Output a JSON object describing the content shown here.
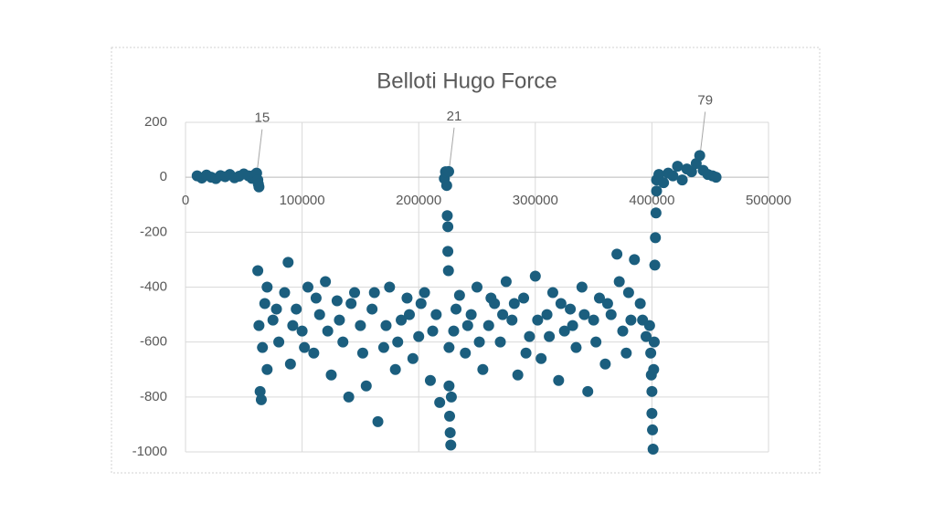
{
  "chart_data": {
    "type": "scatter",
    "title": "Belloti Hugo Force",
    "color": "#1b5e7e",
    "grid": true,
    "xlim": [
      0,
      500000
    ],
    "xticks": [
      0,
      100000,
      200000,
      300000,
      400000,
      500000
    ],
    "ylim": [
      -1000,
      200
    ],
    "yticks": [
      -1000,
      -800,
      -600,
      -400,
      -200,
      0,
      200
    ],
    "x": [
      10000,
      14000,
      18000,
      22000,
      26000,
      30000,
      34000,
      38000,
      42000,
      46000,
      50000,
      54000,
      57000,
      59000,
      61000,
      62000,
      62500,
      63000,
      62000,
      63000,
      64000,
      65000,
      66000,
      68000,
      70000,
      75000,
      80000,
      85000,
      88000,
      90000,
      95000,
      100000,
      105000,
      110000,
      115000,
      120000,
      125000,
      130000,
      135000,
      140000,
      145000,
      150000,
      155000,
      160000,
      165000,
      170000,
      175000,
      180000,
      185000,
      190000,
      195000,
      200000,
      205000,
      210000,
      215000,
      218000,
      222000,
      223000,
      224000,
      225700,
      224500,
      225000,
      225000,
      225500,
      226000,
      226000,
      226500,
      227000,
      227500,
      228000,
      230000,
      235000,
      240000,
      245000,
      250000,
      255000,
      260000,
      265000,
      270000,
      275000,
      280000,
      285000,
      290000,
      295000,
      300000,
      305000,
      310000,
      315000,
      320000,
      325000,
      330000,
      335000,
      340000,
      345000,
      350000,
      355000,
      360000,
      365000,
      370000,
      372000,
      375000,
      378000,
      380000,
      385000,
      390000,
      392000,
      395000,
      398000,
      399000,
      399500,
      400000,
      400000,
      400500,
      401000,
      401500,
      402000,
      402500,
      403000,
      403500,
      404000,
      404000,
      406000,
      410000,
      414000,
      418000,
      422000,
      426000,
      430000,
      434000,
      438000,
      441000,
      444000,
      448000,
      452000,
      455000,
      70000,
      78000,
      92000,
      102000,
      112000,
      122000,
      132000,
      142000,
      152000,
      162000,
      172000,
      182000,
      192000,
      202000,
      212000,
      232000,
      242000,
      252000,
      262000,
      272000,
      282000,
      292000,
      302000,
      312000,
      322000,
      332000,
      342000,
      352000,
      362000,
      382000
    ],
    "values": [
      5,
      -3,
      8,
      0,
      -5,
      6,
      2,
      10,
      -2,
      4,
      12,
      5,
      -4,
      8,
      15,
      -10,
      -25,
      -35,
      -340,
      -540,
      -780,
      -810,
      -620,
      -460,
      -700,
      -520,
      -600,
      -420,
      -310,
      -680,
      -480,
      -560,
      -400,
      -640,
      -500,
      -380,
      -720,
      -450,
      -600,
      -800,
      -420,
      -540,
      -760,
      -480,
      -890,
      -620,
      -400,
      -700,
      -520,
      -440,
      -660,
      -580,
      -420,
      -740,
      -500,
      -820,
      -5,
      20,
      -30,
      21,
      -140,
      -180,
      -270,
      -340,
      -620,
      -760,
      -870,
      -930,
      -975,
      -800,
      -560,
      -430,
      -640,
      -500,
      -400,
      -700,
      -540,
      -460,
      -600,
      -380,
      -520,
      -720,
      -440,
      -580,
      -360,
      -660,
      -500,
      -420,
      -740,
      -560,
      -480,
      -620,
      -400,
      -780,
      -520,
      -440,
      -680,
      -500,
      -280,
      -380,
      -560,
      -640,
      -420,
      -300,
      -460,
      -520,
      -580,
      -540,
      -640,
      -720,
      -780,
      -860,
      -920,
      -990,
      -700,
      -600,
      -320,
      -220,
      -130,
      -50,
      -10,
      10,
      -20,
      15,
      5,
      40,
      -10,
      30,
      20,
      50,
      79,
      25,
      10,
      5,
      0,
      -400,
      -480,
      -540,
      -620,
      -440,
      -560,
      -520,
      -460,
      -640,
      -420,
      -540,
      -600,
      -500,
      -460,
      -560,
      -480,
      -540,
      -600,
      -440,
      -500,
      -460,
      -640,
      -520,
      -580,
      -460,
      -540,
      -500,
      -600,
      -460,
      -520
    ],
    "data_labels": [
      {
        "x": 61000,
        "y": 15
      },
      {
        "x": 225700,
        "y": 21
      },
      {
        "x": 441000,
        "y": 79
      }
    ]
  }
}
